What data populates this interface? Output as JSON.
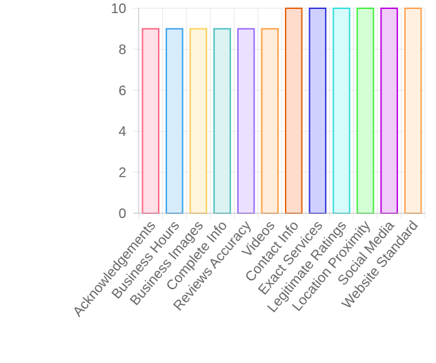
{
  "chart_data": {
    "type": "bar",
    "title": "",
    "xlabel": "",
    "ylabel": "",
    "ylim": [
      0,
      10
    ],
    "yticks": [
      0,
      2,
      4,
      6,
      8,
      10
    ],
    "grid": true,
    "legend": "none",
    "categories": [
      "Acknowledgements",
      "Business Hours",
      "Business Images",
      "Complete Info",
      "Reviews Accuracy",
      "Videos",
      "Contact Info",
      "Exact Services",
      "Legitimate Ratings",
      "Location Proximity",
      "Social Media",
      "Website Standard"
    ],
    "values": [
      9,
      9,
      9,
      9,
      9,
      9,
      10,
      10,
      10,
      10,
      10,
      10
    ],
    "colors": {
      "strokes": [
        "#ff6384",
        "#36a2eb",
        "#ffce56",
        "#4bc0c0",
        "#9966ff",
        "#ff9f40",
        "#e8600a",
        "#3333dd",
        "#33dddd",
        "#44ee44",
        "#bb00dd",
        "#ffa050"
      ],
      "fills": [
        "#ffe0e6",
        "#d7ecfb",
        "#fff5dd",
        "#dbf2f2",
        "#ebe0ff",
        "#ffecd9",
        "#ffdccc",
        "#d0d0ff",
        "#d6fbfb",
        "#d4ffd4",
        "#f0cdf8",
        "#fff0e0"
      ],
      "grid": "#e5e5e5",
      "axis": "#bbbbbb",
      "text": "#666666"
    }
  }
}
